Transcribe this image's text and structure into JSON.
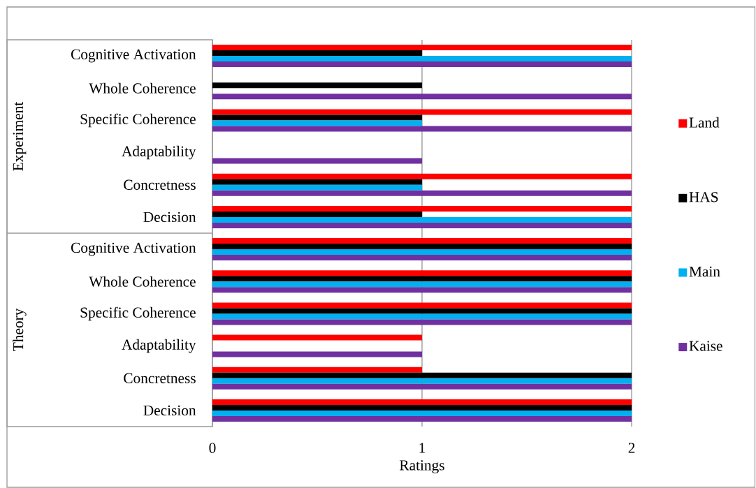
{
  "chart_data": {
    "type": "bar",
    "orientation": "horizontal",
    "xlabel": "Ratings",
    "categories": [
      "Cognitive Activation",
      "Whole Coherence",
      "Specific Coherence",
      "Adaptability",
      "Concretness",
      "Decision",
      "Cognitive Activation",
      "Whole Coherence",
      "Specific Coherence",
      "Adaptability",
      "Concretness",
      "Decision"
    ],
    "annotations": [
      "Experiment",
      "Theory"
    ],
    "series": [
      {
        "name": "Land",
        "color": "#ff0000",
        "values": [
          2,
          0,
          2,
          0,
          2,
          2,
          2,
          2,
          2,
          1,
          1,
          2
        ]
      },
      {
        "name": "HAS",
        "color": "#000000",
        "values": [
          1,
          1,
          1,
          0,
          1,
          1,
          2,
          2,
          2,
          0,
          2,
          2
        ]
      },
      {
        "name": "Main",
        "color": "#00b0f0",
        "values": [
          2,
          0,
          1,
          0,
          1,
          2,
          2,
          2,
          2,
          0,
          2,
          2
        ]
      },
      {
        "name": "Kaise",
        "color": "#7030a0",
        "values": [
          2,
          2,
          2,
          1,
          2,
          2,
          2,
          2,
          2,
          1,
          2,
          2
        ]
      }
    ],
    "xlim": [
      0,
      2
    ],
    "xticks": [
      0,
      1,
      2
    ],
    "grid": "x",
    "legend": "right"
  }
}
